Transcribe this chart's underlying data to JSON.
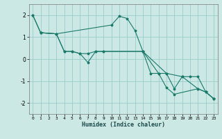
{
  "title": "",
  "xlabel": "Humidex (Indice chaleur)",
  "background_color": "#cce8e4",
  "grid_color": "#99cccc",
  "line_color": "#1a7a6a",
  "xlim": [
    -0.5,
    23.5
  ],
  "ylim": [
    -2.5,
    2.5
  ],
  "yticks": [
    -2,
    -1,
    0,
    1,
    2
  ],
  "xticks": [
    0,
    1,
    2,
    3,
    4,
    5,
    6,
    7,
    8,
    9,
    10,
    11,
    12,
    13,
    14,
    15,
    16,
    17,
    18,
    19,
    20,
    21,
    22,
    23
  ],
  "series1": {
    "x": [
      0,
      1,
      3,
      10,
      11,
      12,
      13,
      14,
      15,
      16,
      17,
      18,
      21,
      22,
      23
    ],
    "y": [
      2.0,
      1.2,
      1.15,
      1.55,
      1.95,
      1.85,
      1.3,
      0.35,
      -0.65,
      -0.65,
      -1.3,
      -1.6,
      -1.35,
      -1.5,
      -1.8
    ]
  },
  "series2": {
    "x": [
      0,
      1,
      3,
      4,
      5,
      6,
      7,
      8,
      9,
      14,
      16,
      17,
      19,
      20,
      21,
      22,
      23
    ],
    "y": [
      2.0,
      1.2,
      1.15,
      0.35,
      0.35,
      0.25,
      0.25,
      0.35,
      0.35,
      0.35,
      -0.65,
      -0.65,
      -0.8,
      -0.8,
      -0.8,
      -1.5,
      -1.8
    ]
  },
  "series3": {
    "x": [
      1,
      3,
      4,
      5,
      6,
      7,
      8,
      9,
      14,
      17,
      18,
      19,
      21,
      22,
      23
    ],
    "y": [
      1.2,
      1.15,
      0.35,
      0.35,
      0.25,
      -0.15,
      0.35,
      0.35,
      0.35,
      -0.65,
      -1.35,
      -0.8,
      -1.35,
      -1.5,
      -1.8
    ]
  }
}
